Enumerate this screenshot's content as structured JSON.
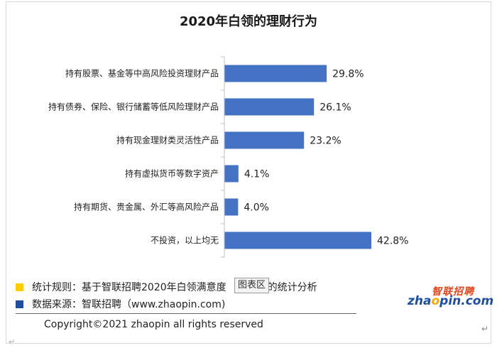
{
  "chart_data": {
    "type": "bar",
    "orientation": "horizontal",
    "title": "2020年白领的理财行为",
    "categories": [
      "持有股票、基金等中高风险投资理财产品",
      "持有债券、保险、银行储蓄等低风险理财产品",
      "持有现金理财类灵活性产品",
      "持有虚拟货币等数字资产",
      "持有期货、贵金属、外汇等高风险产品",
      "不投资，以上均无"
    ],
    "values": [
      29.8,
      26.1,
      23.2,
      4.1,
      4.0,
      42.8
    ],
    "value_labels": [
      "29.8%",
      "26.1%",
      "23.2%",
      "4.1%",
      "4.0%",
      "42.8%"
    ],
    "bar_color": "#4472c4",
    "xlim": [
      0,
      45
    ],
    "grid": false,
    "legend": "none"
  },
  "footer": {
    "rule_text": "统计规则：基于智联招聘2020年白领满意度",
    "rule_text_tail": "的统计分析",
    "source_text": "数据来源：智联招聘（www.zhaopin.com)",
    "rule_marker_color": "#ffcc00",
    "source_marker_color": "#1f4e9c",
    "copyright": "Copyright©2021 zhaopin all rights reserved"
  },
  "overlay": {
    "chart_tag": "图表区"
  },
  "logo": {
    "cn": "智联招聘",
    "en_a": "zha",
    "en_o": "o",
    "en_b": "pin.com"
  },
  "marks": {
    "return_symbol": "↵",
    "corner_symbol": "↵"
  }
}
